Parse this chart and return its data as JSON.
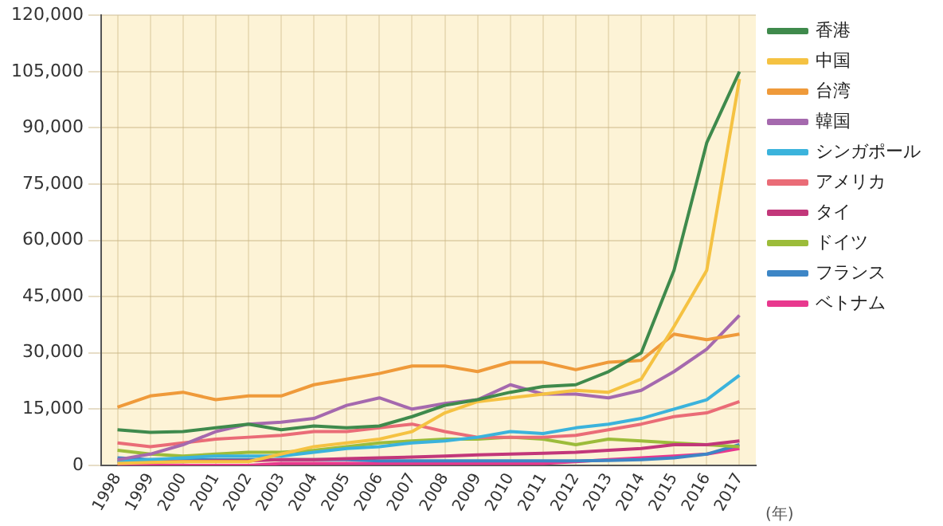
{
  "chart_data": {
    "type": "line",
    "xlabel": "(年)",
    "categories": [
      "1998",
      "1999",
      "2000",
      "2001",
      "2002",
      "2003",
      "2004",
      "2005",
      "2006",
      "2007",
      "2008",
      "2009",
      "2010",
      "2011",
      "2012",
      "2013",
      "2014",
      "2015",
      "2016",
      "2017"
    ],
    "series": [
      {
        "name": "香港",
        "color": "#3f8a4c",
        "values": [
          9500,
          8800,
          9000,
          10000,
          11000,
          9500,
          10500,
          10000,
          10500,
          13000,
          16000,
          17500,
          19500,
          21000,
          21500,
          25000,
          30000,
          52000,
          86000,
          105000
        ]
      },
      {
        "name": "中国",
        "color": "#f5c242",
        "values": [
          500,
          800,
          1000,
          1000,
          1000,
          3000,
          5000,
          6000,
          7000,
          9000,
          14000,
          17000,
          18000,
          19000,
          20000,
          19500,
          23000,
          37000,
          52000,
          103000
        ]
      },
      {
        "name": "台湾",
        "color": "#ef9a3a",
        "values": [
          15500,
          18500,
          19500,
          17500,
          18500,
          18500,
          21500,
          23000,
          24500,
          26500,
          26500,
          25000,
          27500,
          27500,
          25500,
          27500,
          28000,
          35000,
          33500,
          35000
        ]
      },
      {
        "name": "韓国",
        "color": "#a569ae",
        "values": [
          1500,
          3000,
          5500,
          9000,
          11000,
          11500,
          12500,
          16000,
          18000,
          15000,
          16500,
          17500,
          21500,
          19000,
          19000,
          18000,
          20000,
          25000,
          31000,
          40000
        ]
      },
      {
        "name": "シンガポール",
        "color": "#3bb3dc",
        "values": [
          1000,
          1500,
          2000,
          2500,
          2500,
          2500,
          3500,
          4500,
          5000,
          6000,
          6500,
          7500,
          9000,
          8500,
          10000,
          11000,
          12500,
          15000,
          17500,
          24000
        ]
      },
      {
        "name": "アメリカ",
        "color": "#ea6c77",
        "values": [
          6000,
          5000,
          6000,
          7000,
          7500,
          8000,
          9000,
          9000,
          10000,
          11000,
          9000,
          7500,
          7500,
          7500,
          8000,
          9500,
          11000,
          13000,
          14000,
          17000
        ]
      },
      {
        "name": "タイ",
        "color": "#c2377a",
        "values": [
          1000,
          1000,
          1000,
          1200,
          1200,
          1500,
          1500,
          1800,
          2000,
          2200,
          2500,
          2800,
          3000,
          3200,
          3500,
          4000,
          4500,
          5500,
          5500,
          6500
        ]
      },
      {
        "name": "ドイツ",
        "color": "#9cbc3a",
        "values": [
          4000,
          3000,
          2500,
          3000,
          3500,
          3500,
          4000,
          5000,
          6000,
          6500,
          7000,
          7000,
          7500,
          7000,
          5500,
          7000,
          6500,
          6000,
          5500,
          5000
        ]
      },
      {
        "name": "フランス",
        "color": "#3d86c6",
        "values": [
          2000,
          1500,
          1500,
          1500,
          1500,
          1500,
          1500,
          1500,
          1200,
          1200,
          1200,
          1200,
          1200,
          1200,
          1200,
          1300,
          1500,
          2000,
          3000,
          5500
        ]
      },
      {
        "name": "ベトナム",
        "color": "#e8388e",
        "values": [
          0,
          0,
          0,
          0,
          0,
          500,
          500,
          500,
          500,
          500,
          500,
          500,
          500,
          500,
          1000,
          1500,
          2000,
          2500,
          3000,
          4500
        ]
      }
    ],
    "ylim": [
      0,
      120000
    ],
    "yticks": [
      0,
      {
        "value": 15000,
        "label": "15,000"
      },
      {
        "value": 30000,
        "label": "30,000"
      },
      {
        "value": 45000,
        "label": "45,000"
      },
      {
        "value": 60000,
        "label": "60,000"
      },
      {
        "value": 75000,
        "label": "75,000"
      },
      {
        "value": 90000,
        "label": "90,000"
      },
      {
        "value": 105000,
        "label": "105,000"
      },
      {
        "value": 120000,
        "label": "120,000"
      }
    ],
    "grid": true,
    "legend": "right",
    "marker": "none",
    "line_style": "solid"
  }
}
